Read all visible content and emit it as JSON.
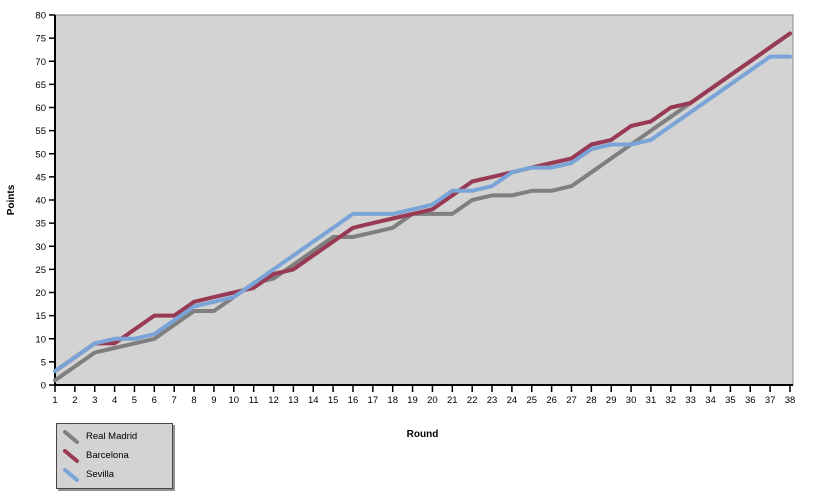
{
  "chart_data": {
    "type": "line",
    "title": "",
    "xlabel": "Round",
    "ylabel": "Points",
    "x": [
      1,
      2,
      3,
      4,
      5,
      6,
      7,
      8,
      9,
      10,
      11,
      12,
      13,
      14,
      15,
      16,
      17,
      18,
      19,
      20,
      21,
      22,
      23,
      24,
      25,
      26,
      27,
      28,
      29,
      30,
      31,
      32,
      33,
      34,
      35,
      36,
      37,
      38
    ],
    "yticks": [
      0,
      5,
      10,
      15,
      20,
      25,
      30,
      35,
      40,
      45,
      50,
      55,
      60,
      65,
      70,
      75,
      80
    ],
    "ylim": [
      0,
      80
    ],
    "grid": false,
    "legend_position": "bottom-left",
    "plot_bg": "#d3d3d3",
    "plot_border": "#8a8a8a",
    "axis_color": "#000000",
    "series": [
      {
        "name": "Real Madrid",
        "color": "#7f7f7f",
        "values": [
          1,
          4,
          7,
          8,
          9,
          10,
          13,
          16,
          16,
          19,
          22,
          23,
          26,
          29,
          32,
          32,
          33,
          34,
          37,
          37,
          37,
          40,
          41,
          41,
          42,
          42,
          43,
          46,
          49,
          52,
          55,
          58,
          61,
          64,
          67,
          70,
          73,
          76
        ]
      },
      {
        "name": "Barcelona",
        "color": "#993a55",
        "values": [
          3,
          6,
          9,
          9,
          12,
          15,
          15,
          18,
          19,
          20,
          21,
          24,
          25,
          28,
          31,
          34,
          35,
          36,
          37,
          38,
          41,
          44,
          45,
          46,
          47,
          48,
          49,
          52,
          53,
          56,
          57,
          60,
          61,
          64,
          67,
          70,
          73,
          76
        ]
      },
      {
        "name": "Sevilla",
        "color": "#7aa4d8",
        "values": [
          3,
          6,
          9,
          10,
          10,
          11,
          14,
          17,
          18,
          19,
          22,
          25,
          28,
          31,
          34,
          37,
          37,
          37,
          38,
          39,
          42,
          42,
          43,
          46,
          47,
          47,
          48,
          51,
          52,
          52,
          53,
          56,
          59,
          62,
          65,
          68,
          71,
          71
        ]
      }
    ]
  }
}
